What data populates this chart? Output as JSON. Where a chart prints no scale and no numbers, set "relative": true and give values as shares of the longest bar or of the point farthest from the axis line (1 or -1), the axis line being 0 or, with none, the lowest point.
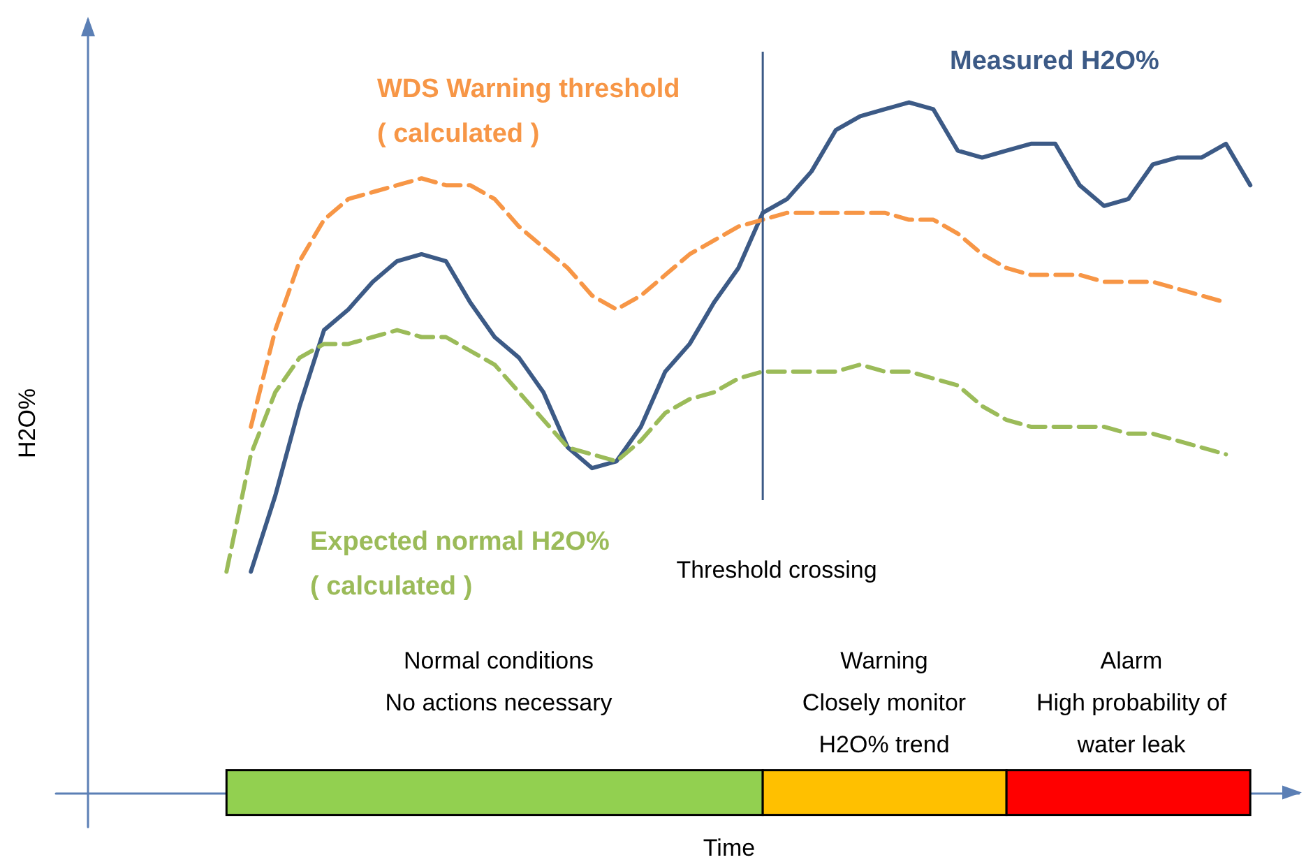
{
  "chart_data": {
    "type": "line",
    "relative": true,
    "xlabel": "Time",
    "ylabel": "H2O%",
    "legend": false,
    "grid": false,
    "marker": "none",
    "categories": [
      null,
      null,
      null,
      null,
      null,
      null,
      null,
      null,
      null,
      null,
      null,
      null,
      null,
      null,
      null,
      null,
      null,
      null,
      null,
      null,
      null,
      null,
      null,
      null,
      null,
      null,
      null,
      null,
      null,
      null,
      null,
      null,
      null,
      null,
      null,
      null,
      null,
      null,
      null,
      null,
      null,
      null,
      null,
      null,
      null,
      null,
      null,
      null,
      null,
      null,
      null,
      null
    ],
    "series": [
      {
        "name": "Measured H2O%",
        "color": "#3c5a86",
        "line_style": "solid",
        "values": [
          null,
          null,
          null,
          null,
          null,
          null,
          null,
          null,
          0.32,
          0.43,
          0.56,
          0.67,
          0.7,
          0.74,
          0.77,
          0.78,
          0.77,
          0.71,
          0.66,
          0.63,
          0.58,
          0.5,
          0.47,
          0.48,
          0.53,
          0.61,
          0.65,
          0.71,
          0.76,
          0.84,
          0.86,
          0.9,
          0.96,
          0.98,
          0.99,
          1.0,
          0.99,
          0.93,
          0.92,
          0.93,
          0.94,
          0.94,
          0.88,
          0.85,
          0.86,
          0.91,
          0.92,
          0.92,
          0.94,
          0.88,
          null,
          null
        ]
      },
      {
        "name": "WDS Warning threshold\n( calculated )",
        "color": "#f79646",
        "line_style": "dashed",
        "values": [
          null,
          null,
          null,
          null,
          null,
          null,
          null,
          null,
          0.53,
          0.67,
          0.77,
          0.83,
          0.86,
          0.87,
          0.88,
          0.89,
          0.88,
          0.88,
          0.86,
          0.82,
          0.79,
          0.76,
          0.72,
          0.7,
          0.72,
          0.75,
          0.78,
          0.8,
          0.82,
          0.83,
          0.84,
          0.84,
          0.84,
          0.84,
          0.84,
          0.83,
          0.83,
          0.81,
          0.78,
          0.76,
          0.75,
          0.75,
          0.75,
          0.74,
          0.74,
          0.74,
          0.73,
          0.72,
          0.71,
          null,
          null,
          null
        ]
      },
      {
        "name": "Expected normal H2O%\n( calculated )",
        "color": "#9bbb59",
        "line_style": "dashed",
        "values": [
          null,
          null,
          null,
          null,
          null,
          null,
          null,
          0.32,
          0.49,
          0.58,
          0.63,
          0.65,
          0.65,
          0.66,
          0.67,
          0.66,
          0.66,
          0.64,
          0.62,
          0.58,
          0.54,
          0.5,
          0.49,
          0.48,
          0.51,
          0.55,
          0.57,
          0.58,
          0.6,
          0.61,
          0.61,
          0.61,
          0.61,
          0.62,
          0.61,
          0.61,
          0.6,
          0.59,
          0.56,
          0.54,
          0.53,
          0.53,
          0.53,
          0.53,
          0.52,
          0.52,
          0.51,
          0.5,
          0.49,
          null,
          null,
          null
        ]
      }
    ],
    "annotations": [
      "Threshold crossing",
      "Normal conditions\nNo actions necessary",
      "Warning\nClosely monitor\nH2O% trend",
      "Alarm\nHigh probability of\nwater leak"
    ]
  }
}
